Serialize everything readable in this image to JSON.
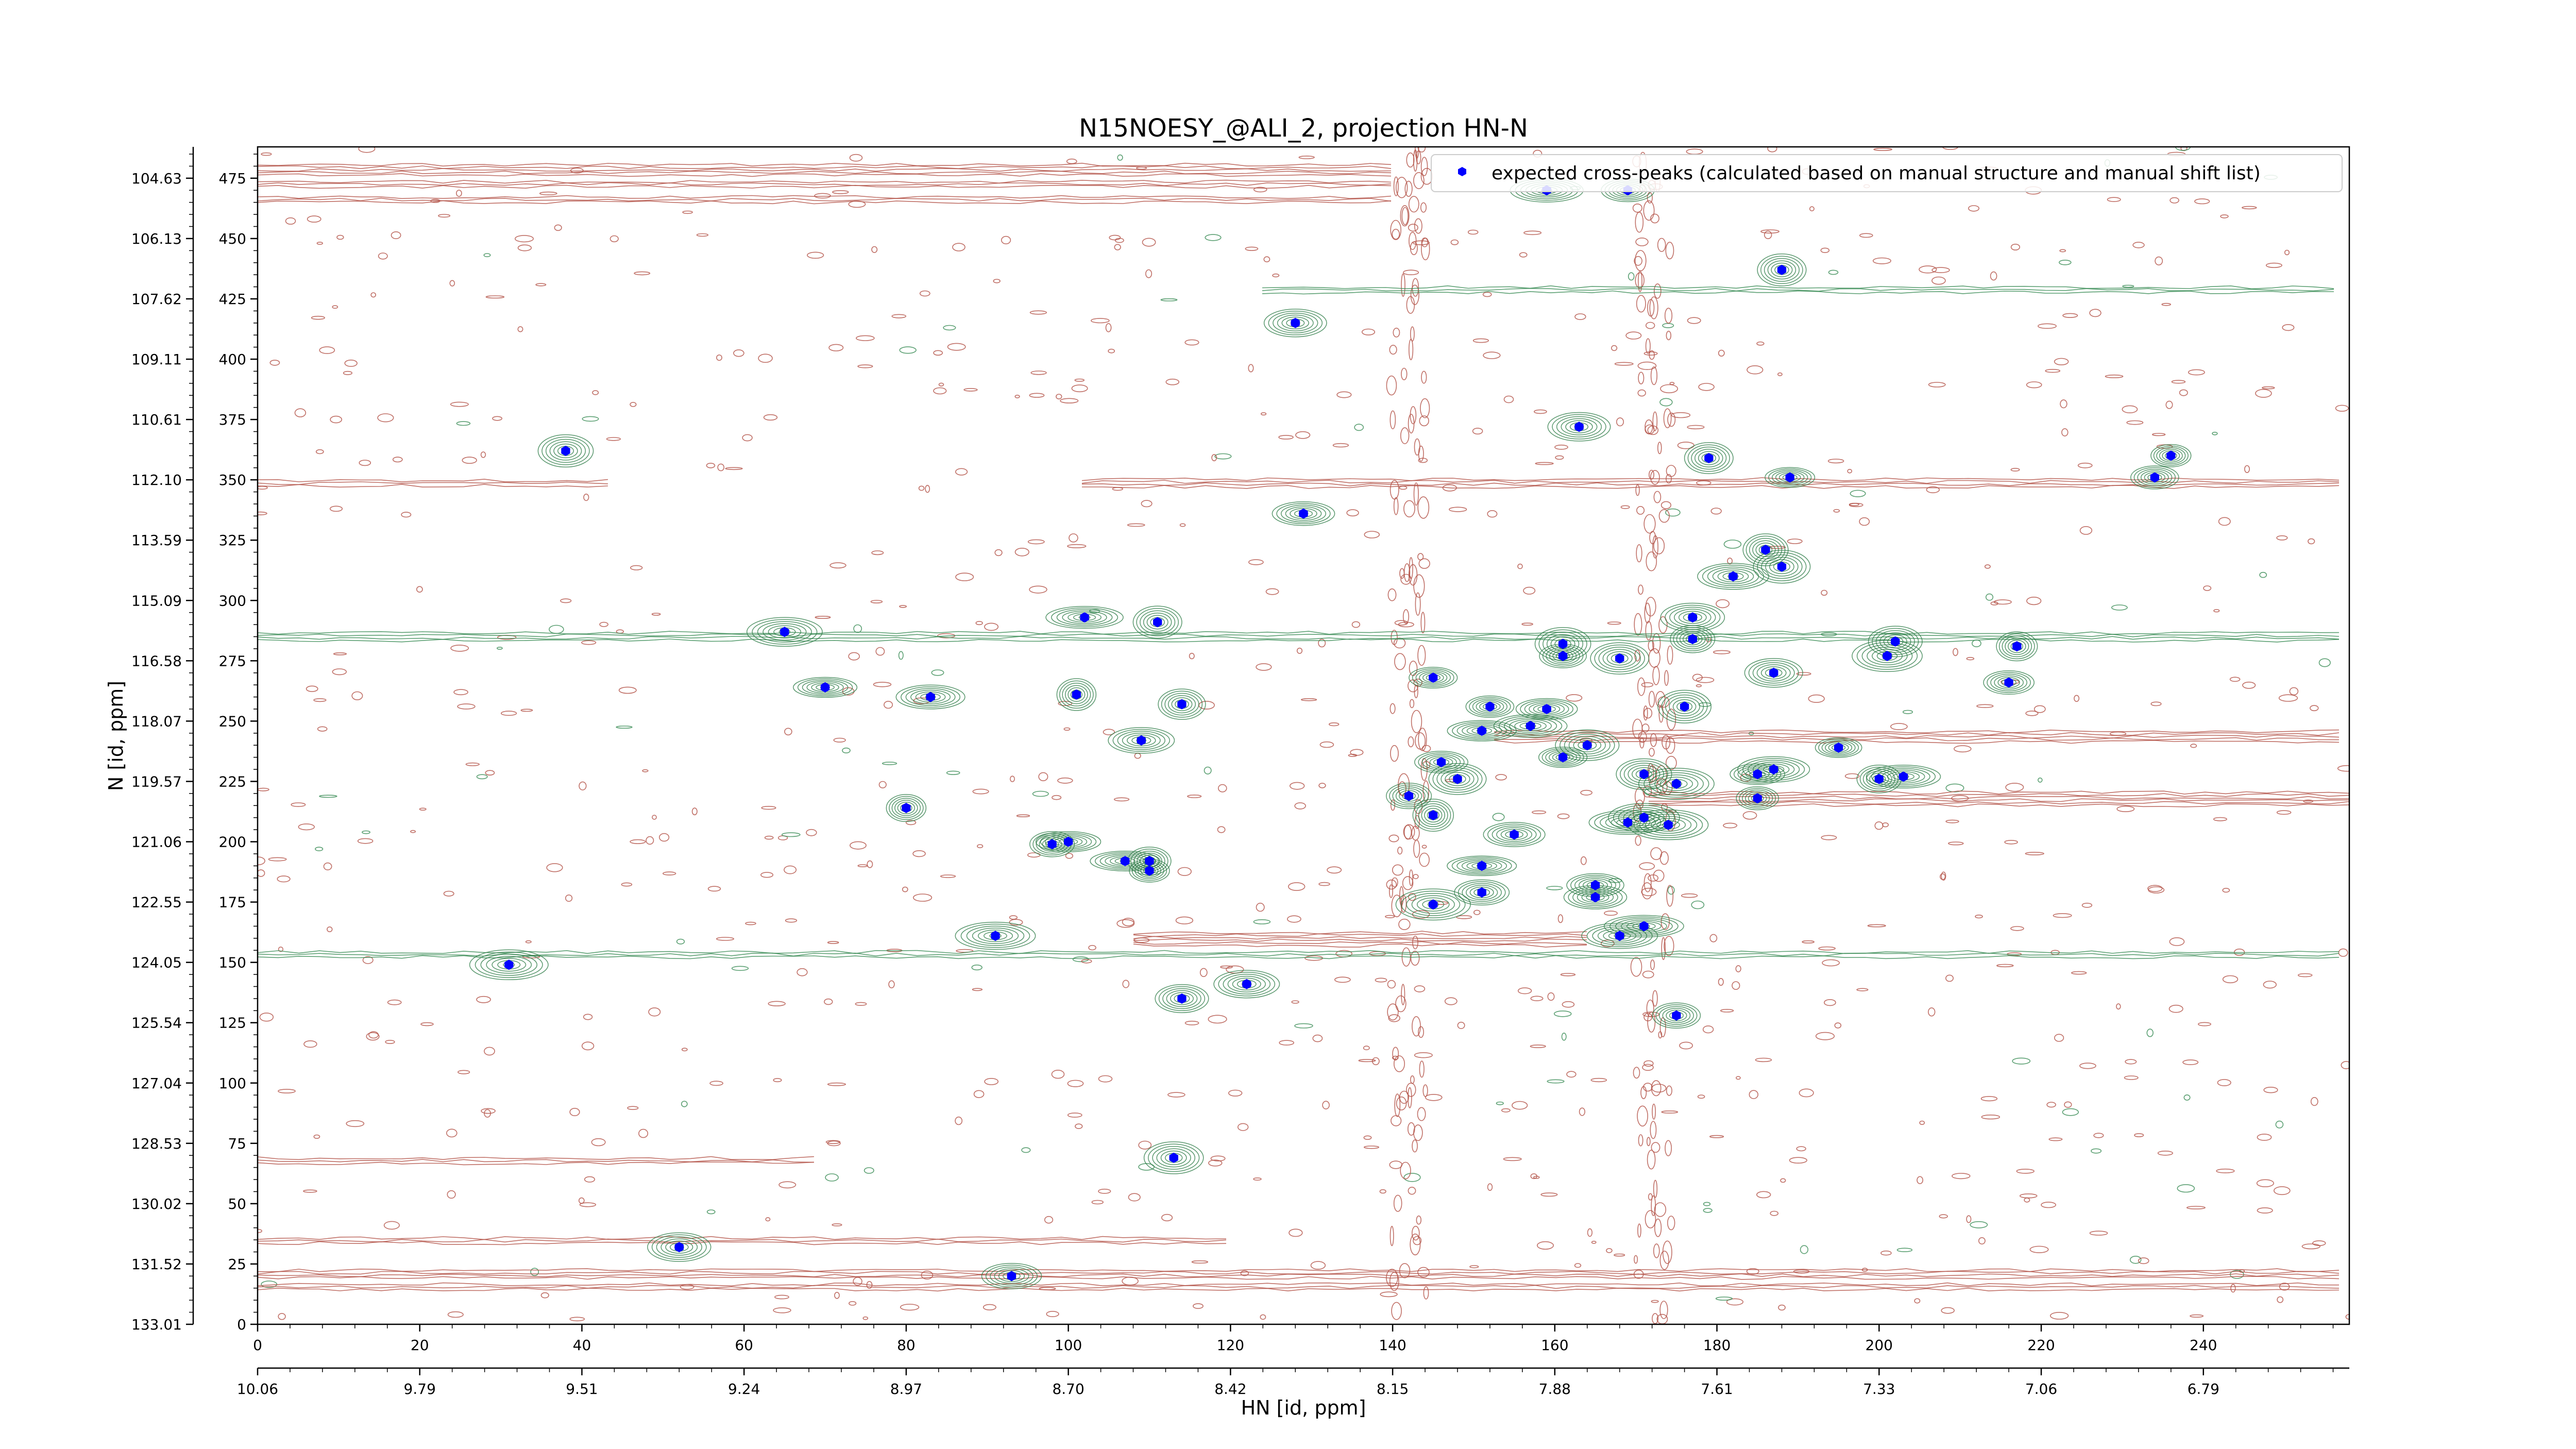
{
  "chart_data": {
    "type": "scatter",
    "title": "N15NOESY_@ALI_2, projection HN-N",
    "xlabel": "HN [id, ppm]",
    "ylabel": "N [id, ppm]",
    "xlim": [
      0,
      258
    ],
    "ylim": [
      0,
      488
    ],
    "x_ticks": [
      0,
      20,
      40,
      60,
      80,
      100,
      120,
      140,
      160,
      180,
      200,
      220,
      240
    ],
    "y_ticks": [
      0,
      25,
      50,
      75,
      100,
      125,
      150,
      175,
      200,
      225,
      250,
      275,
      300,
      325,
      350,
      375,
      400,
      425,
      450,
      475
    ],
    "x_secondary_ticks": [
      {
        "pos": 0,
        "label": "10.06"
      },
      {
        "pos": 20,
        "label": "9.79"
      },
      {
        "pos": 40,
        "label": "9.51"
      },
      {
        "pos": 60,
        "label": "9.24"
      },
      {
        "pos": 80,
        "label": "8.97"
      },
      {
        "pos": 100,
        "label": "8.70"
      },
      {
        "pos": 120,
        "label": "8.42"
      },
      {
        "pos": 140,
        "label": "8.15"
      },
      {
        "pos": 160,
        "label": "7.88"
      },
      {
        "pos": 180,
        "label": "7.61"
      },
      {
        "pos": 200,
        "label": "7.33"
      },
      {
        "pos": 220,
        "label": "7.06"
      },
      {
        "pos": 240,
        "label": "6.79"
      }
    ],
    "y_secondary_ticks": [
      {
        "pos": 0,
        "label": "133.01"
      },
      {
        "pos": 25,
        "label": "131.52"
      },
      {
        "pos": 50,
        "label": "130.02"
      },
      {
        "pos": 75,
        "label": "128.53"
      },
      {
        "pos": 100,
        "label": "127.04"
      },
      {
        "pos": 125,
        "label": "125.54"
      },
      {
        "pos": 150,
        "label": "124.05"
      },
      {
        "pos": 175,
        "label": "122.55"
      },
      {
        "pos": 200,
        "label": "121.06"
      },
      {
        "pos": 225,
        "label": "119.57"
      },
      {
        "pos": 250,
        "label": "118.07"
      },
      {
        "pos": 275,
        "label": "116.58"
      },
      {
        "pos": 300,
        "label": "115.09"
      },
      {
        "pos": 325,
        "label": "113.59"
      },
      {
        "pos": 350,
        "label": "112.10"
      },
      {
        "pos": 375,
        "label": "110.61"
      },
      {
        "pos": 400,
        "label": "109.11"
      },
      {
        "pos": 425,
        "label": "107.62"
      },
      {
        "pos": 450,
        "label": "106.13"
      },
      {
        "pos": 475,
        "label": "104.63"
      }
    ],
    "legend": {
      "location": "top-right",
      "entries": [
        "expected cross-peaks (calculated based on manual structure and manual shift list)"
      ]
    },
    "series": [
      {
        "name": "expected cross-peaks (calculated based on manual structure and manual shift list)",
        "marker": "hexagon",
        "color": "#0000ff",
        "points": [
          [
            38,
            362
          ],
          [
            52,
            32
          ],
          [
            31,
            149
          ],
          [
            65,
            287
          ],
          [
            70,
            264
          ],
          [
            83,
            260
          ],
          [
            80,
            214
          ],
          [
            91,
            161
          ],
          [
            93,
            20
          ],
          [
            98,
            199
          ],
          [
            100,
            200
          ],
          [
            101,
            261
          ],
          [
            102,
            293
          ],
          [
            109,
            242
          ],
          [
            107,
            192
          ],
          [
            110,
            192
          ],
          [
            110,
            188
          ],
          [
            111,
            291
          ],
          [
            114,
            135
          ],
          [
            114,
            257
          ],
          [
            113,
            69
          ],
          [
            122,
            141
          ],
          [
            128,
            415
          ],
          [
            129,
            336
          ],
          [
            145,
            174
          ],
          [
            142,
            219
          ],
          [
            145,
            211
          ],
          [
            146,
            233
          ],
          [
            145,
            268
          ],
          [
            148,
            226
          ],
          [
            151,
            246
          ],
          [
            151,
            190
          ],
          [
            151,
            179
          ],
          [
            152,
            256
          ],
          [
            155,
            203
          ],
          [
            157,
            248
          ],
          [
            159,
            255
          ],
          [
            159,
            470
          ],
          [
            161,
            235
          ],
          [
            161,
            277
          ],
          [
            161,
            282
          ],
          [
            163,
            372
          ],
          [
            164,
            240
          ],
          [
            165,
            182
          ],
          [
            165,
            177
          ],
          [
            168,
            161
          ],
          [
            169,
            470
          ],
          [
            169,
            208
          ],
          [
            168,
            276
          ],
          [
            171,
            228
          ],
          [
            171,
            165
          ],
          [
            171,
            210
          ],
          [
            175,
            128
          ],
          [
            174,
            207
          ],
          [
            175,
            224
          ],
          [
            176,
            256
          ],
          [
            177,
            284
          ],
          [
            177,
            293
          ],
          [
            179,
            359
          ],
          [
            182,
            310
          ],
          [
            185,
            228
          ],
          [
            185,
            218
          ],
          [
            186,
            321
          ],
          [
            187,
            230
          ],
          [
            187,
            270
          ],
          [
            188,
            437
          ],
          [
            188,
            314
          ],
          [
            189,
            351
          ],
          [
            195,
            239
          ],
          [
            200,
            226
          ],
          [
            203,
            227
          ],
          [
            202,
            283
          ],
          [
            201,
            277
          ],
          [
            216,
            266
          ],
          [
            217,
            281
          ],
          [
            234,
            351
          ],
          [
            236,
            360
          ]
        ]
      }
    ]
  }
}
